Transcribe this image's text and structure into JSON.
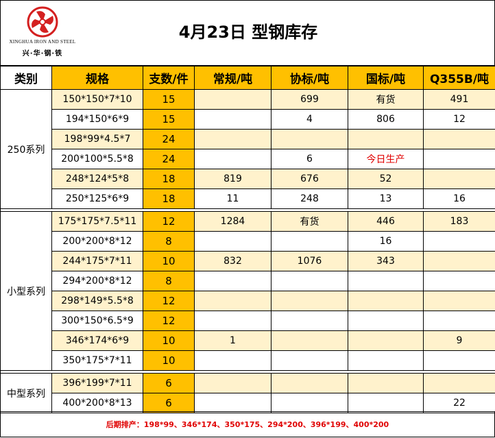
{
  "brand": {
    "name_en": "XINGHUA IRON AND STEEL",
    "name_cn": "兴·华·钢·铁",
    "logo_color": "#d42020"
  },
  "title": "4月23日 型钢库存",
  "headers": [
    "类别",
    "规格",
    "支数/件",
    "常规/吨",
    "协标/吨",
    "国标/吨",
    "Q355B/吨"
  ],
  "colors": {
    "header_bg": "#ffc000",
    "stripe_bg": "#fff2cc",
    "note_red": "#e00000"
  },
  "groups": [
    {
      "name": "250系列",
      "rows": [
        {
          "spec": "150*150*7*10",
          "count": "15",
          "regular": "",
          "assoc": "699",
          "national": "有货",
          "q355b": "491"
        },
        {
          "spec": "194*150*6*9",
          "count": "15",
          "regular": "",
          "assoc": "4",
          "national": "806",
          "q355b": "12"
        },
        {
          "spec": "198*99*4.5*7",
          "count": "24",
          "regular": "",
          "assoc": "",
          "national": "",
          "q355b": ""
        },
        {
          "spec": "200*100*5.5*8",
          "count": "24",
          "regular": "",
          "assoc": "6",
          "national": "今日生产",
          "q355b": ""
        },
        {
          "spec": "248*124*5*8",
          "count": "18",
          "regular": "819",
          "assoc": "676",
          "national": "52",
          "q355b": ""
        },
        {
          "spec": "250*125*6*9",
          "count": "18",
          "regular": "11",
          "assoc": "248",
          "national": "13",
          "q355b": "16"
        }
      ]
    },
    {
      "name": "小型系列",
      "rows": [
        {
          "spec": "175*175*7.5*11",
          "count": "12",
          "regular": "1284",
          "assoc": "有货",
          "national": "446",
          "q355b": "183"
        },
        {
          "spec": "200*200*8*12",
          "count": "8",
          "regular": "",
          "assoc": "",
          "national": "16",
          "q355b": ""
        },
        {
          "spec": "244*175*7*11",
          "count": "10",
          "regular": "832",
          "assoc": "1076",
          "national": "343",
          "q355b": ""
        },
        {
          "spec": "294*200*8*12",
          "count": "8",
          "regular": "",
          "assoc": "",
          "national": "",
          "q355b": ""
        },
        {
          "spec": "298*149*5.5*8",
          "count": "12",
          "regular": "",
          "assoc": "",
          "national": "",
          "q355b": ""
        },
        {
          "spec": "300*150*6.5*9",
          "count": "12",
          "regular": "",
          "assoc": "",
          "national": "",
          "q355b": ""
        },
        {
          "spec": "346*174*6*9",
          "count": "10",
          "regular": "1",
          "assoc": "",
          "national": "",
          "q355b": "9"
        },
        {
          "spec": "350*175*7*11",
          "count": "10",
          "regular": "",
          "assoc": "",
          "national": "",
          "q355b": ""
        }
      ]
    },
    {
      "name": "中型系列",
      "rows": [
        {
          "spec": "396*199*7*11",
          "count": "6",
          "regular": "",
          "assoc": "",
          "national": "",
          "q355b": ""
        },
        {
          "spec": "400*200*8*13",
          "count": "6",
          "regular": "",
          "assoc": "",
          "national": "",
          "q355b": "22"
        }
      ]
    }
  ],
  "footer_note": "后期排产：198*99、346*174、350*175、294*200、396*199、400*200"
}
